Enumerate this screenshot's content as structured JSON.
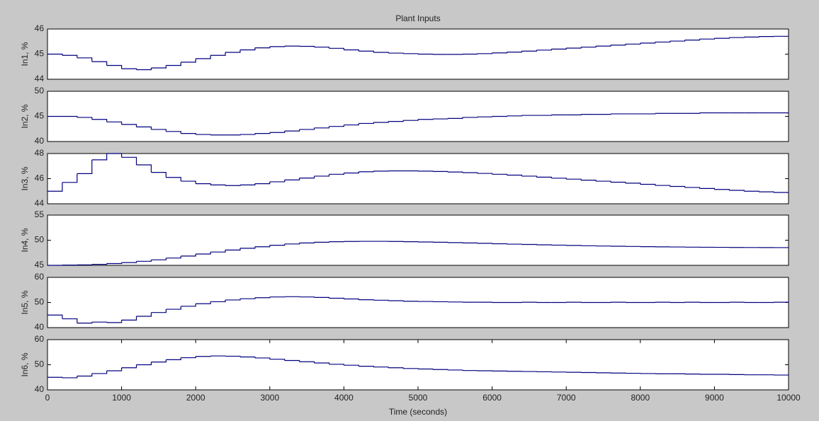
{
  "chart_data": [
    {
      "type": "line",
      "step": true,
      "title": "Plant Inputs",
      "ylabel": "In1, %",
      "color": "#00007f",
      "xlim": [
        0,
        10000
      ],
      "ylim": [
        44,
        46
      ],
      "yticks": [
        44,
        45,
        46
      ],
      "x": [
        0,
        200,
        400,
        600,
        800,
        1000,
        1200,
        1400,
        1600,
        1800,
        2000,
        2200,
        2400,
        2600,
        2800,
        3000,
        3200,
        3400,
        3600,
        3800,
        4000,
        4200,
        4400,
        4600,
        4800,
        5000,
        5200,
        5400,
        5600,
        5800,
        6000,
        6200,
        6400,
        6600,
        6800,
        7000,
        7200,
        7400,
        7600,
        7800,
        8000,
        8200,
        8400,
        8600,
        8800,
        9000,
        9200,
        9400,
        9600,
        9800,
        10000
      ],
      "values": [
        45.0,
        44.95,
        44.85,
        44.7,
        44.55,
        44.42,
        44.38,
        44.45,
        44.55,
        44.68,
        44.82,
        44.95,
        45.07,
        45.17,
        45.25,
        45.3,
        45.32,
        45.31,
        45.28,
        45.23,
        45.17,
        45.12,
        45.07,
        45.04,
        45.02,
        45.0,
        44.99,
        44.99,
        45.0,
        45.02,
        45.05,
        45.08,
        45.12,
        45.16,
        45.2,
        45.24,
        45.28,
        45.32,
        45.36,
        45.4,
        45.44,
        45.48,
        45.52,
        45.56,
        45.6,
        45.63,
        45.66,
        45.68,
        45.7,
        45.71,
        45.72
      ]
    },
    {
      "type": "line",
      "step": true,
      "ylabel": "In2, %",
      "color": "#00007f",
      "xlim": [
        0,
        10000
      ],
      "ylim": [
        40,
        50
      ],
      "yticks": [
        40,
        45,
        50
      ],
      "x": [
        0,
        200,
        400,
        600,
        800,
        1000,
        1200,
        1400,
        1600,
        1800,
        2000,
        2200,
        2400,
        2600,
        2800,
        3000,
        3200,
        3400,
        3600,
        3800,
        4000,
        4200,
        4400,
        4600,
        4800,
        5000,
        5200,
        5400,
        5600,
        5800,
        6000,
        6200,
        6400,
        6600,
        6800,
        7000,
        7200,
        7400,
        7600,
        7800,
        8000,
        8200,
        8400,
        8600,
        8800,
        9000,
        9200,
        9400,
        9600,
        9800,
        10000
      ],
      "values": [
        45.0,
        45.0,
        44.8,
        44.4,
        43.9,
        43.4,
        42.9,
        42.4,
        42.0,
        41.6,
        41.4,
        41.3,
        41.3,
        41.4,
        41.6,
        41.8,
        42.1,
        42.4,
        42.7,
        43.0,
        43.3,
        43.6,
        43.8,
        44.0,
        44.2,
        44.4,
        44.5,
        44.6,
        44.8,
        44.9,
        45.0,
        45.1,
        45.2,
        45.2,
        45.3,
        45.3,
        45.4,
        45.4,
        45.5,
        45.5,
        45.5,
        45.6,
        45.6,
        45.6,
        45.7,
        45.7,
        45.7,
        45.7,
        45.7,
        45.7,
        45.7
      ]
    },
    {
      "type": "line",
      "step": true,
      "ylabel": "In3, %",
      "color": "#00007f",
      "xlim": [
        0,
        10000
      ],
      "ylim": [
        44,
        48
      ],
      "yticks": [
        44,
        46,
        48
      ],
      "x": [
        0,
        200,
        400,
        600,
        800,
        1000,
        1200,
        1400,
        1600,
        1800,
        2000,
        2200,
        2400,
        2600,
        2800,
        3000,
        3200,
        3400,
        3600,
        3800,
        4000,
        4200,
        4400,
        4600,
        4800,
        5000,
        5200,
        5400,
        5600,
        5800,
        6000,
        6200,
        6400,
        6600,
        6800,
        7000,
        7200,
        7400,
        7600,
        7800,
        8000,
        8200,
        8400,
        8600,
        8800,
        9000,
        9200,
        9400,
        9600,
        9800,
        10000
      ],
      "values": [
        45.0,
        45.7,
        46.4,
        47.5,
        48.0,
        47.7,
        47.1,
        46.5,
        46.1,
        45.8,
        45.6,
        45.5,
        45.45,
        45.5,
        45.6,
        45.75,
        45.9,
        46.05,
        46.2,
        46.35,
        46.45,
        46.55,
        46.6,
        46.62,
        46.62,
        46.6,
        46.57,
        46.53,
        46.48,
        46.42,
        46.35,
        46.28,
        46.2,
        46.12,
        46.04,
        45.96,
        45.88,
        45.8,
        45.72,
        45.64,
        45.55,
        45.46,
        45.38,
        45.3,
        45.22,
        45.14,
        45.07,
        45.0,
        44.95,
        44.9,
        44.87
      ]
    },
    {
      "type": "line",
      "step": true,
      "ylabel": "In4, %",
      "color": "#00007f",
      "xlim": [
        0,
        10000
      ],
      "ylim": [
        45,
        55
      ],
      "yticks": [
        45,
        50,
        55
      ],
      "x": [
        0,
        200,
        400,
        600,
        800,
        1000,
        1200,
        1400,
        1600,
        1800,
        2000,
        2200,
        2400,
        2600,
        2800,
        3000,
        3200,
        3400,
        3600,
        3800,
        4000,
        4200,
        4400,
        4600,
        4800,
        5000,
        5200,
        5400,
        5600,
        5800,
        6000,
        6200,
        6400,
        6600,
        6800,
        7000,
        7200,
        7400,
        7600,
        7800,
        8000,
        8200,
        8400,
        8600,
        8800,
        9000,
        9200,
        9400,
        9600,
        9800,
        10000
      ],
      "values": [
        45.0,
        45.05,
        45.1,
        45.2,
        45.35,
        45.55,
        45.8,
        46.1,
        46.45,
        46.85,
        47.25,
        47.65,
        48.05,
        48.4,
        48.7,
        49.0,
        49.25,
        49.45,
        49.6,
        49.7,
        49.75,
        49.78,
        49.78,
        49.75,
        49.7,
        49.65,
        49.6,
        49.52,
        49.45,
        49.38,
        49.3,
        49.22,
        49.15,
        49.08,
        49.02,
        48.96,
        48.9,
        48.85,
        48.8,
        48.76,
        48.72,
        48.68,
        48.65,
        48.62,
        48.6,
        48.58,
        48.56,
        48.55,
        48.54,
        48.53,
        48.52
      ]
    },
    {
      "type": "line",
      "step": true,
      "ylabel": "In5, %",
      "color": "#00007f",
      "xlim": [
        0,
        10000
      ],
      "ylim": [
        40,
        60
      ],
      "yticks": [
        40,
        50,
        60
      ],
      "x": [
        0,
        200,
        400,
        600,
        800,
        1000,
        1200,
        1400,
        1600,
        1800,
        2000,
        2200,
        2400,
        2600,
        2800,
        3000,
        3200,
        3400,
        3600,
        3800,
        4000,
        4200,
        4400,
        4600,
        4800,
        5000,
        5200,
        5400,
        5600,
        5800,
        6000,
        6200,
        6400,
        6600,
        6800,
        7000,
        7200,
        7400,
        7600,
        7800,
        8000,
        8200,
        8400,
        8600,
        8800,
        9000,
        9200,
        9400,
        9600,
        9800,
        10000
      ],
      "values": [
        45.0,
        43.5,
        41.8,
        42.2,
        42.0,
        43.0,
        44.5,
        46.0,
        47.3,
        48.5,
        49.5,
        50.3,
        51.0,
        51.5,
        51.9,
        52.2,
        52.3,
        52.2,
        52.0,
        51.7,
        51.4,
        51.1,
        50.9,
        50.7,
        50.5,
        50.4,
        50.3,
        50.2,
        50.1,
        50.1,
        50.0,
        50.0,
        50.1,
        50.0,
        50.0,
        50.1,
        50.0,
        50.0,
        50.1,
        50.0,
        50.0,
        50.1,
        50.0,
        50.1,
        50.0,
        50.0,
        50.1,
        50.0,
        50.0,
        50.1,
        50.0
      ]
    },
    {
      "type": "line",
      "step": true,
      "ylabel": "In6, %",
      "xlabel": "Time (seconds)",
      "color": "#00007f",
      "xlim": [
        0,
        10000
      ],
      "xticks": [
        0,
        1000,
        2000,
        3000,
        4000,
        5000,
        6000,
        7000,
        8000,
        9000,
        10000
      ],
      "ylim": [
        40,
        60
      ],
      "yticks": [
        40,
        50,
        60
      ],
      "x": [
        0,
        200,
        400,
        600,
        800,
        1000,
        1200,
        1400,
        1600,
        1800,
        2000,
        2200,
        2400,
        2600,
        2800,
        3000,
        3200,
        3400,
        3600,
        3800,
        4000,
        4200,
        4400,
        4600,
        4800,
        5000,
        5200,
        5400,
        5600,
        5800,
        6000,
        6200,
        6400,
        6600,
        6800,
        7000,
        7200,
        7400,
        7600,
        7800,
        8000,
        8200,
        8400,
        8600,
        8800,
        9000,
        9200,
        9400,
        9600,
        9800,
        10000
      ],
      "values": [
        45.0,
        44.8,
        45.5,
        46.5,
        47.6,
        48.8,
        50.0,
        51.1,
        52.0,
        52.8,
        53.3,
        53.5,
        53.4,
        53.1,
        52.7,
        52.2,
        51.7,
        51.2,
        50.7,
        50.2,
        49.8,
        49.4,
        49.1,
        48.8,
        48.5,
        48.3,
        48.1,
        47.9,
        47.7,
        47.6,
        47.5,
        47.4,
        47.3,
        47.2,
        47.1,
        47.0,
        46.9,
        46.8,
        46.7,
        46.6,
        46.5,
        46.4,
        46.4,
        46.3,
        46.2,
        46.2,
        46.1,
        46.0,
        46.0,
        45.9,
        45.8
      ]
    }
  ]
}
